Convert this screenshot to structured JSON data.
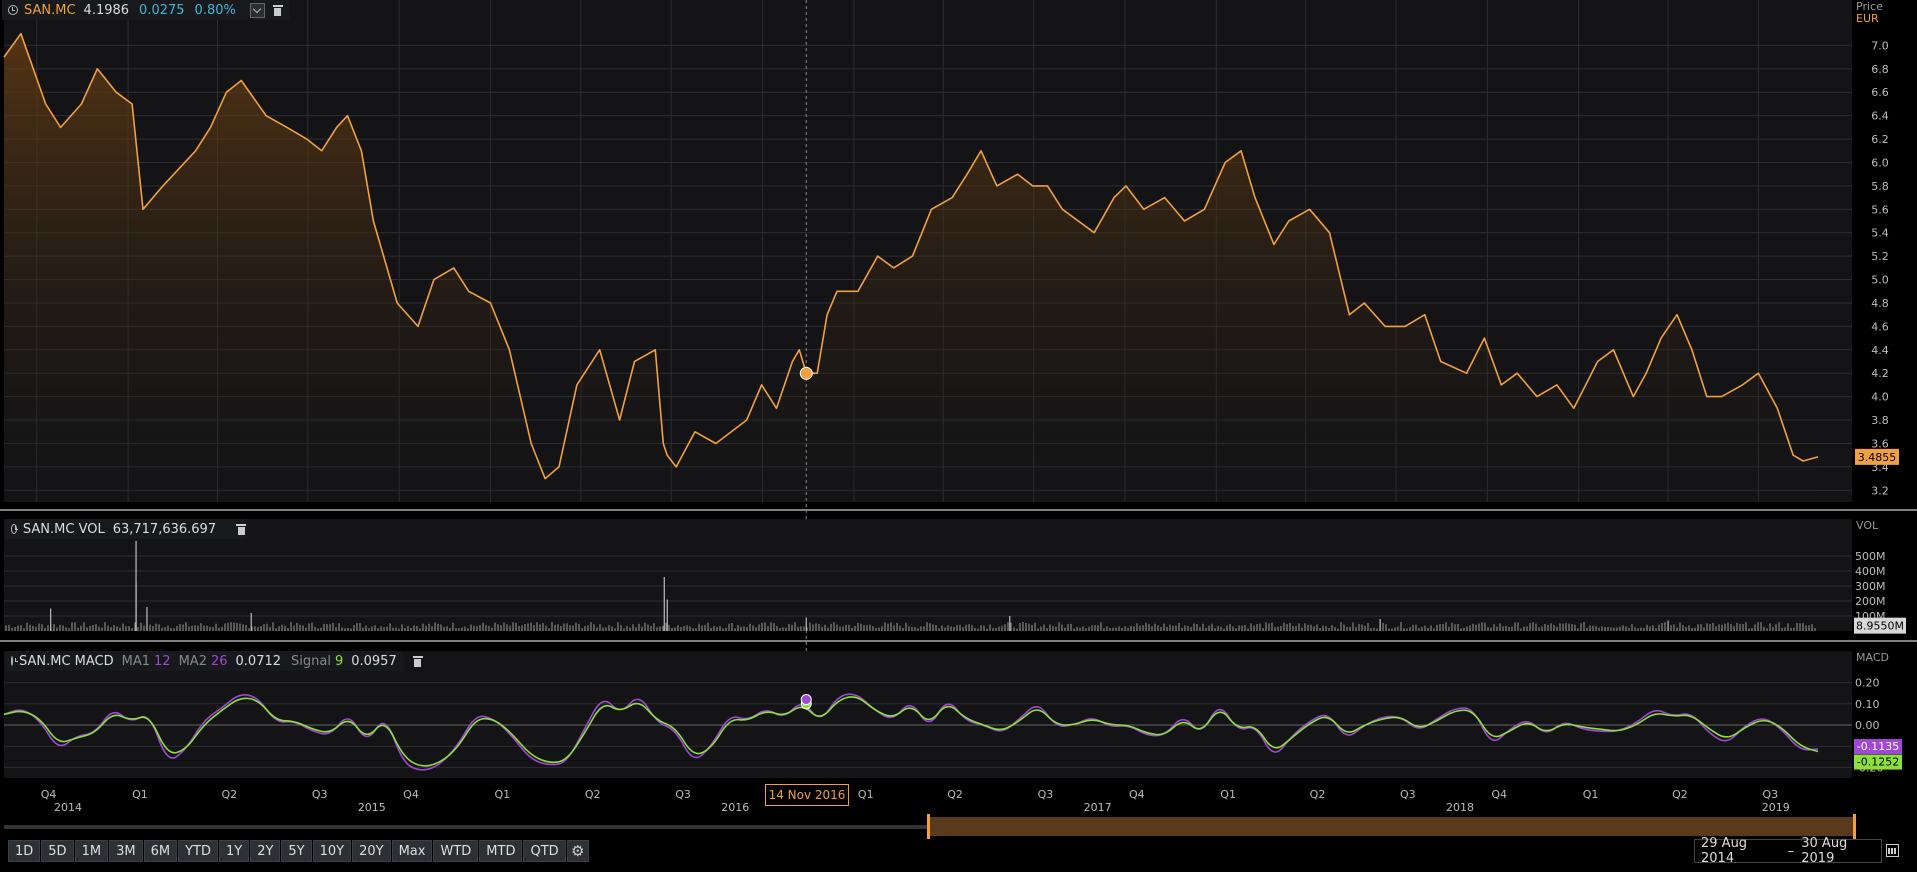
{
  "colors": {
    "price_line": "#f0a040",
    "macd_line": "#a246d6",
    "signal_line": "#8be03c",
    "change_text": "#3fb6d8",
    "background": "#000000",
    "panel": "#17191c"
  },
  "price_panel": {
    "symbol": "SAN.MC",
    "value": "4.1986",
    "change": "0.0275",
    "change_pct": "0.80%",
    "axis_title": "Price",
    "axis_unit": "EUR",
    "y_ticks": [
      "7.0",
      "6.8",
      "6.6",
      "6.4",
      "6.2",
      "6.0",
      "5.8",
      "5.6",
      "5.4",
      "5.2",
      "5.0",
      "4.8",
      "4.6",
      "4.4",
      "4.2",
      "4.0",
      "3.8",
      "3.6",
      "3.4",
      "3.2"
    ],
    "last_value_label": "3.4855"
  },
  "volume_panel": {
    "label": "SAN.MC VOL",
    "value": "63,717,636.697",
    "axis_title": "VOL",
    "y_ticks": [
      "500M",
      "400M",
      "300M",
      "200M",
      "100M"
    ],
    "last_value_label": "8.9550M"
  },
  "macd_panel": {
    "label": "SAN.MC MACD",
    "ma1_label": "MA1",
    "ma1_value": "12",
    "ma2_label": "MA2",
    "ma2_value": "26",
    "macd_value": "0.0712",
    "signal_label": "Signal",
    "signal_period": "9",
    "signal_value": "0.0957",
    "axis_title": "MACD",
    "y_ticks": [
      "0.20",
      "0.10",
      "0.00",
      "-0.10",
      "-0.20"
    ],
    "last_macd_label": "-0.1135",
    "last_signal_label": "-0.1252"
  },
  "x_axis": {
    "quarters": [
      "Q4",
      "Q1",
      "Q2",
      "Q3",
      "Q4",
      "Q1",
      "Q2",
      "Q3",
      "Q4",
      "Q1",
      "Q2",
      "Q3",
      "Q4",
      "Q1",
      "Q2",
      "Q3",
      "Q4",
      "Q1",
      "Q2",
      "Q3"
    ],
    "years": [
      "2014",
      "2015",
      "2016",
      "2017",
      "2018",
      "2019"
    ]
  },
  "crosshair": {
    "date_label": "14 Nov 2016",
    "price": 4.1986
  },
  "toolbar": {
    "buttons": [
      "1D",
      "5D",
      "1M",
      "3M",
      "6M",
      "YTD",
      "1Y",
      "2Y",
      "5Y",
      "10Y",
      "20Y",
      "Max",
      "WTD",
      "MTD",
      "QTD"
    ]
  },
  "date_range": {
    "start": "29 Aug 2014",
    "separator": "–",
    "end": "30 Aug 2019"
  },
  "chart_data": [
    {
      "type": "area",
      "title": "SAN.MC",
      "ylabel": "Price EUR",
      "ylim": [
        3.1,
        7.2
      ],
      "x_range": [
        "2014-08-29",
        "2019-08-30"
      ],
      "series": [
        {
          "name": "SAN.MC",
          "x": [
            "2014-08-29",
            "2014-09-15",
            "2014-10-10",
            "2014-10-25",
            "2014-11-15",
            "2014-12-01",
            "2014-12-20",
            "2015-01-05",
            "2015-01-16",
            "2015-02-05",
            "2015-03-10",
            "2015-03-25",
            "2015-04-10",
            "2015-04-25",
            "2015-05-20",
            "2015-06-10",
            "2015-06-30",
            "2015-07-15",
            "2015-07-30",
            "2015-08-10",
            "2015-08-24",
            "2015-09-05",
            "2015-09-29",
            "2015-10-20",
            "2015-11-05",
            "2015-11-25",
            "2015-12-10",
            "2016-01-01",
            "2016-01-20",
            "2016-02-11",
            "2016-02-25",
            "2016-03-10",
            "2016-03-28",
            "2016-04-20",
            "2016-05-10",
            "2016-05-25",
            "2016-06-15",
            "2016-06-23",
            "2016-06-27",
            "2016-07-06",
            "2016-07-25",
            "2016-08-15",
            "2016-09-15",
            "2016-09-30",
            "2016-10-15",
            "2016-10-31",
            "2016-11-07",
            "2016-11-14",
            "2016-11-25",
            "2016-12-05",
            "2016-12-15",
            "2017-01-05",
            "2017-01-25",
            "2017-02-10",
            "2017-03-01",
            "2017-03-20",
            "2017-04-10",
            "2017-04-25",
            "2017-05-09",
            "2017-05-25",
            "2017-06-15",
            "2017-06-30",
            "2017-07-15",
            "2017-07-30",
            "2017-08-15",
            "2017-08-31",
            "2017-09-20",
            "2017-10-02",
            "2017-10-20",
            "2017-11-10",
            "2017-11-30",
            "2017-12-20",
            "2018-01-10",
            "2018-01-26",
            "2018-02-09",
            "2018-02-28",
            "2018-03-15",
            "2018-04-05",
            "2018-04-25",
            "2018-05-15",
            "2018-05-30",
            "2018-06-20",
            "2018-07-10",
            "2018-07-30",
            "2018-08-15",
            "2018-09-10",
            "2018-09-28",
            "2018-10-15",
            "2018-10-31",
            "2018-11-20",
            "2018-12-10",
            "2018-12-27",
            "2019-01-20",
            "2019-02-05",
            "2019-02-25",
            "2019-03-10",
            "2019-03-25",
            "2019-04-10",
            "2019-04-25",
            "2019-05-10",
            "2019-05-25",
            "2019-06-15",
            "2019-07-01",
            "2019-07-20",
            "2019-08-05",
            "2019-08-15",
            "2019-08-30"
          ],
          "values": [
            6.9,
            7.1,
            6.5,
            6.3,
            6.5,
            6.8,
            6.6,
            6.5,
            5.6,
            5.8,
            6.1,
            6.3,
            6.6,
            6.7,
            6.4,
            6.3,
            6.2,
            6.1,
            6.3,
            6.4,
            6.1,
            5.5,
            4.8,
            4.6,
            5.0,
            5.1,
            4.9,
            4.8,
            4.4,
            3.6,
            3.3,
            3.4,
            4.1,
            4.4,
            3.8,
            4.3,
            4.4,
            3.6,
            3.5,
            3.4,
            3.7,
            3.6,
            3.8,
            4.1,
            3.9,
            4.3,
            4.4,
            4.2,
            4.2,
            4.7,
            4.9,
            4.9,
            5.2,
            5.1,
            5.2,
            5.6,
            5.7,
            5.9,
            6.1,
            5.8,
            5.9,
            5.8,
            5.8,
            5.6,
            5.5,
            5.4,
            5.7,
            5.8,
            5.6,
            5.7,
            5.5,
            5.6,
            6.0,
            6.1,
            5.7,
            5.3,
            5.5,
            5.6,
            5.4,
            4.7,
            4.8,
            4.6,
            4.6,
            4.7,
            4.3,
            4.2,
            4.5,
            4.1,
            4.2,
            4.0,
            4.1,
            3.9,
            4.3,
            4.4,
            4.0,
            4.2,
            4.5,
            4.7,
            4.4,
            4.0,
            4.0,
            4.1,
            4.2,
            3.9,
            3.5,
            3.45,
            3.4855
          ]
        }
      ]
    },
    {
      "type": "bar",
      "title": "SAN.MC VOL",
      "ylabel": "VOL",
      "ylim": [
        0,
        600000000
      ],
      "x_range": [
        "2014-08-29",
        "2019-08-30"
      ],
      "spikes": [
        {
          "x": "2014-10-15",
          "value": 150000000
        },
        {
          "x": "2015-01-09",
          "value": 320000000
        },
        {
          "x": "2015-01-09",
          "value": 600000000
        },
        {
          "x": "2015-01-20",
          "value": 160000000
        },
        {
          "x": "2015-05-05",
          "value": 120000000
        },
        {
          "x": "2016-06-24",
          "value": 360000000
        },
        {
          "x": "2016-06-27",
          "value": 210000000
        },
        {
          "x": "2016-11-14",
          "value": 90000000
        },
        {
          "x": "2017-06-07",
          "value": 100000000
        },
        {
          "x": "2018-06-15",
          "value": 80000000
        },
        {
          "x": "2019-04-01",
          "value": 70000000
        }
      ],
      "typical_value": 40000000,
      "last_value": 8955000
    },
    {
      "type": "line",
      "title": "SAN.MC MACD",
      "ylabel": "MACD",
      "ylim": [
        -0.25,
        0.25
      ],
      "x_range": [
        "2014-08-29",
        "2019-08-30"
      ],
      "series": [
        {
          "name": "MACD",
          "values": [
            0.05,
            0.08,
            0.02,
            -0.12,
            -0.05,
            -0.04,
            0.08,
            0.01,
            0.06,
            -0.18,
            -0.12,
            0.02,
            0.08,
            0.15,
            0.13,
            0.01,
            0.02,
            -0.03,
            -0.05,
            0.06,
            -0.09,
            0.05,
            -0.18,
            -0.22,
            -0.19,
            -0.1,
            0.05,
            0.03,
            -0.05,
            -0.16,
            -0.19,
            -0.18,
            -0.02,
            0.14,
            0.05,
            0.15,
            0.01,
            -0.02,
            -0.18,
            -0.1,
            0.05,
            0.02,
            0.08,
            0.03,
            0.12,
            0.01,
            0.14,
            0.15,
            0.07,
            0.02,
            0.12,
            -0.02,
            0.13,
            0.02,
            0.0,
            -0.04,
            0.03,
            0.11,
            -0.01,
            0.0,
            0.04,
            -0.01,
            0.0,
            -0.05,
            -0.05,
            0.05,
            -0.05,
            0.11,
            -0.03,
            0.0,
            -0.16,
            -0.05,
            0.02,
            0.06,
            -0.07,
            0.0,
            0.04,
            0.04,
            -0.03,
            0.03,
            0.08,
            0.08,
            -0.1,
            -0.02,
            0.03,
            -0.05,
            0.02,
            -0.02,
            -0.03,
            -0.03,
            0.01,
            0.08,
            0.04,
            0.06,
            -0.04,
            -0.09,
            0.0,
            0.04,
            -0.02,
            -0.12,
            -0.1135
          ]
        },
        {
          "name": "Signal",
          "values": [
            0.05,
            0.07,
            0.03,
            -0.09,
            -0.06,
            -0.04,
            0.06,
            0.02,
            0.05,
            -0.14,
            -0.12,
            0.0,
            0.07,
            0.13,
            0.12,
            0.02,
            0.02,
            -0.02,
            -0.04,
            0.04,
            -0.07,
            0.03,
            -0.15,
            -0.2,
            -0.18,
            -0.11,
            0.03,
            0.03,
            -0.04,
            -0.14,
            -0.18,
            -0.17,
            -0.04,
            0.11,
            0.06,
            0.12,
            0.02,
            -0.01,
            -0.15,
            -0.11,
            0.03,
            0.02,
            0.07,
            0.04,
            0.1,
            0.02,
            0.12,
            0.14,
            0.07,
            0.03,
            0.1,
            0.0,
            0.11,
            0.03,
            0.0,
            -0.03,
            0.02,
            0.09,
            0.0,
            0.0,
            0.03,
            0.0,
            0.0,
            -0.04,
            -0.05,
            0.03,
            -0.04,
            0.09,
            -0.02,
            0.0,
            -0.13,
            -0.06,
            0.01,
            0.05,
            -0.05,
            0.0,
            0.03,
            0.04,
            -0.02,
            0.02,
            0.07,
            0.07,
            -0.07,
            -0.03,
            0.02,
            -0.04,
            0.01,
            -0.01,
            -0.02,
            -0.03,
            0.0,
            0.06,
            0.04,
            0.05,
            -0.02,
            -0.07,
            -0.01,
            0.03,
            -0.01,
            -0.1,
            -0.1252
          ]
        }
      ]
    }
  ]
}
